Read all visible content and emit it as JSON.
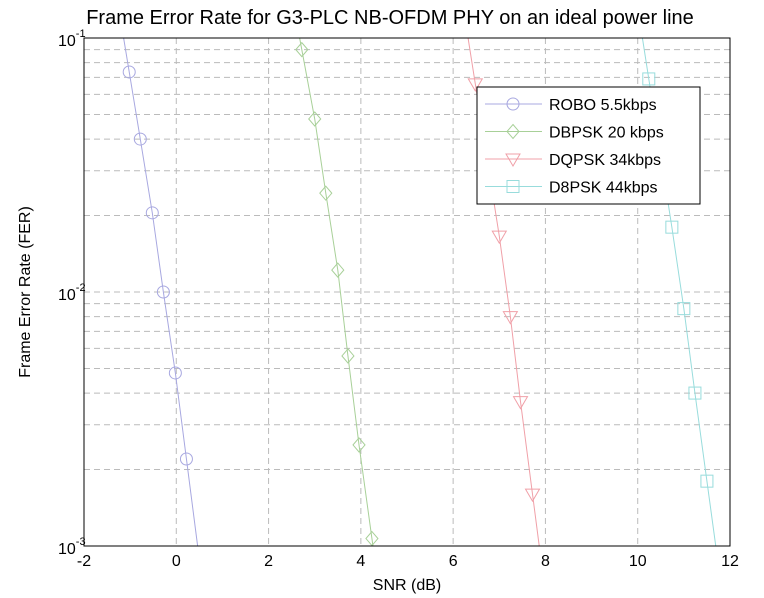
{
  "chart_data": {
    "type": "line",
    "title": "Frame Error Rate for G3-PLC NB-OFDM PHY on an ideal power line",
    "xlabel": "SNR (dB)",
    "ylabel": "Frame Error Rate (FER)",
    "xlim": [
      -2,
      12
    ],
    "ylim": [
      0.001,
      0.1
    ],
    "yscale": "log",
    "grid": true,
    "legend_position": "top-right",
    "x_ticks": [
      "-2",
      "0",
      "2",
      "4",
      "6",
      "8",
      "10",
      "12"
    ],
    "y_ticks": [
      {
        "base": "10",
        "exp": "-1"
      },
      {
        "base": "10",
        "exp": "-2"
      },
      {
        "base": "10",
        "exp": "-3"
      }
    ],
    "series": [
      {
        "name": "ROBO 5.5kbps",
        "color": "#a8a8e0",
        "marker": "circle",
        "x": [
          -1.02,
          -0.78,
          -0.52,
          -0.28,
          -0.02,
          0.22
        ],
        "y": [
          0.0735,
          0.04,
          0.0205,
          0.01,
          0.0048,
          0.0022
        ]
      },
      {
        "name": "DBPSK 20 kbps",
        "color": "#a8d098",
        "marker": "diamond",
        "x": [
          2.72,
          3.0,
          3.24,
          3.5,
          3.72,
          3.96,
          4.24
        ],
        "y": [
          0.09,
          0.048,
          0.0245,
          0.0122,
          0.0056,
          0.0025,
          0.00107
        ]
      },
      {
        "name": "DQPSK 34kbps",
        "color": "#f0a0a8",
        "marker": "triangle-down",
        "x": [
          6.48,
          7.0,
          7.24,
          7.46,
          7.72
        ],
        "y": [
          0.066,
          0.0166,
          0.008,
          0.0037,
          0.0016
        ]
      },
      {
        "name": "D8PSK 44kbps",
        "color": "#98dcdc",
        "marker": "square",
        "x": [
          10.24,
          10.74,
          11.0,
          11.24,
          11.5
        ],
        "y": [
          0.069,
          0.018,
          0.0086,
          0.004,
          0.0018
        ]
      }
    ]
  }
}
